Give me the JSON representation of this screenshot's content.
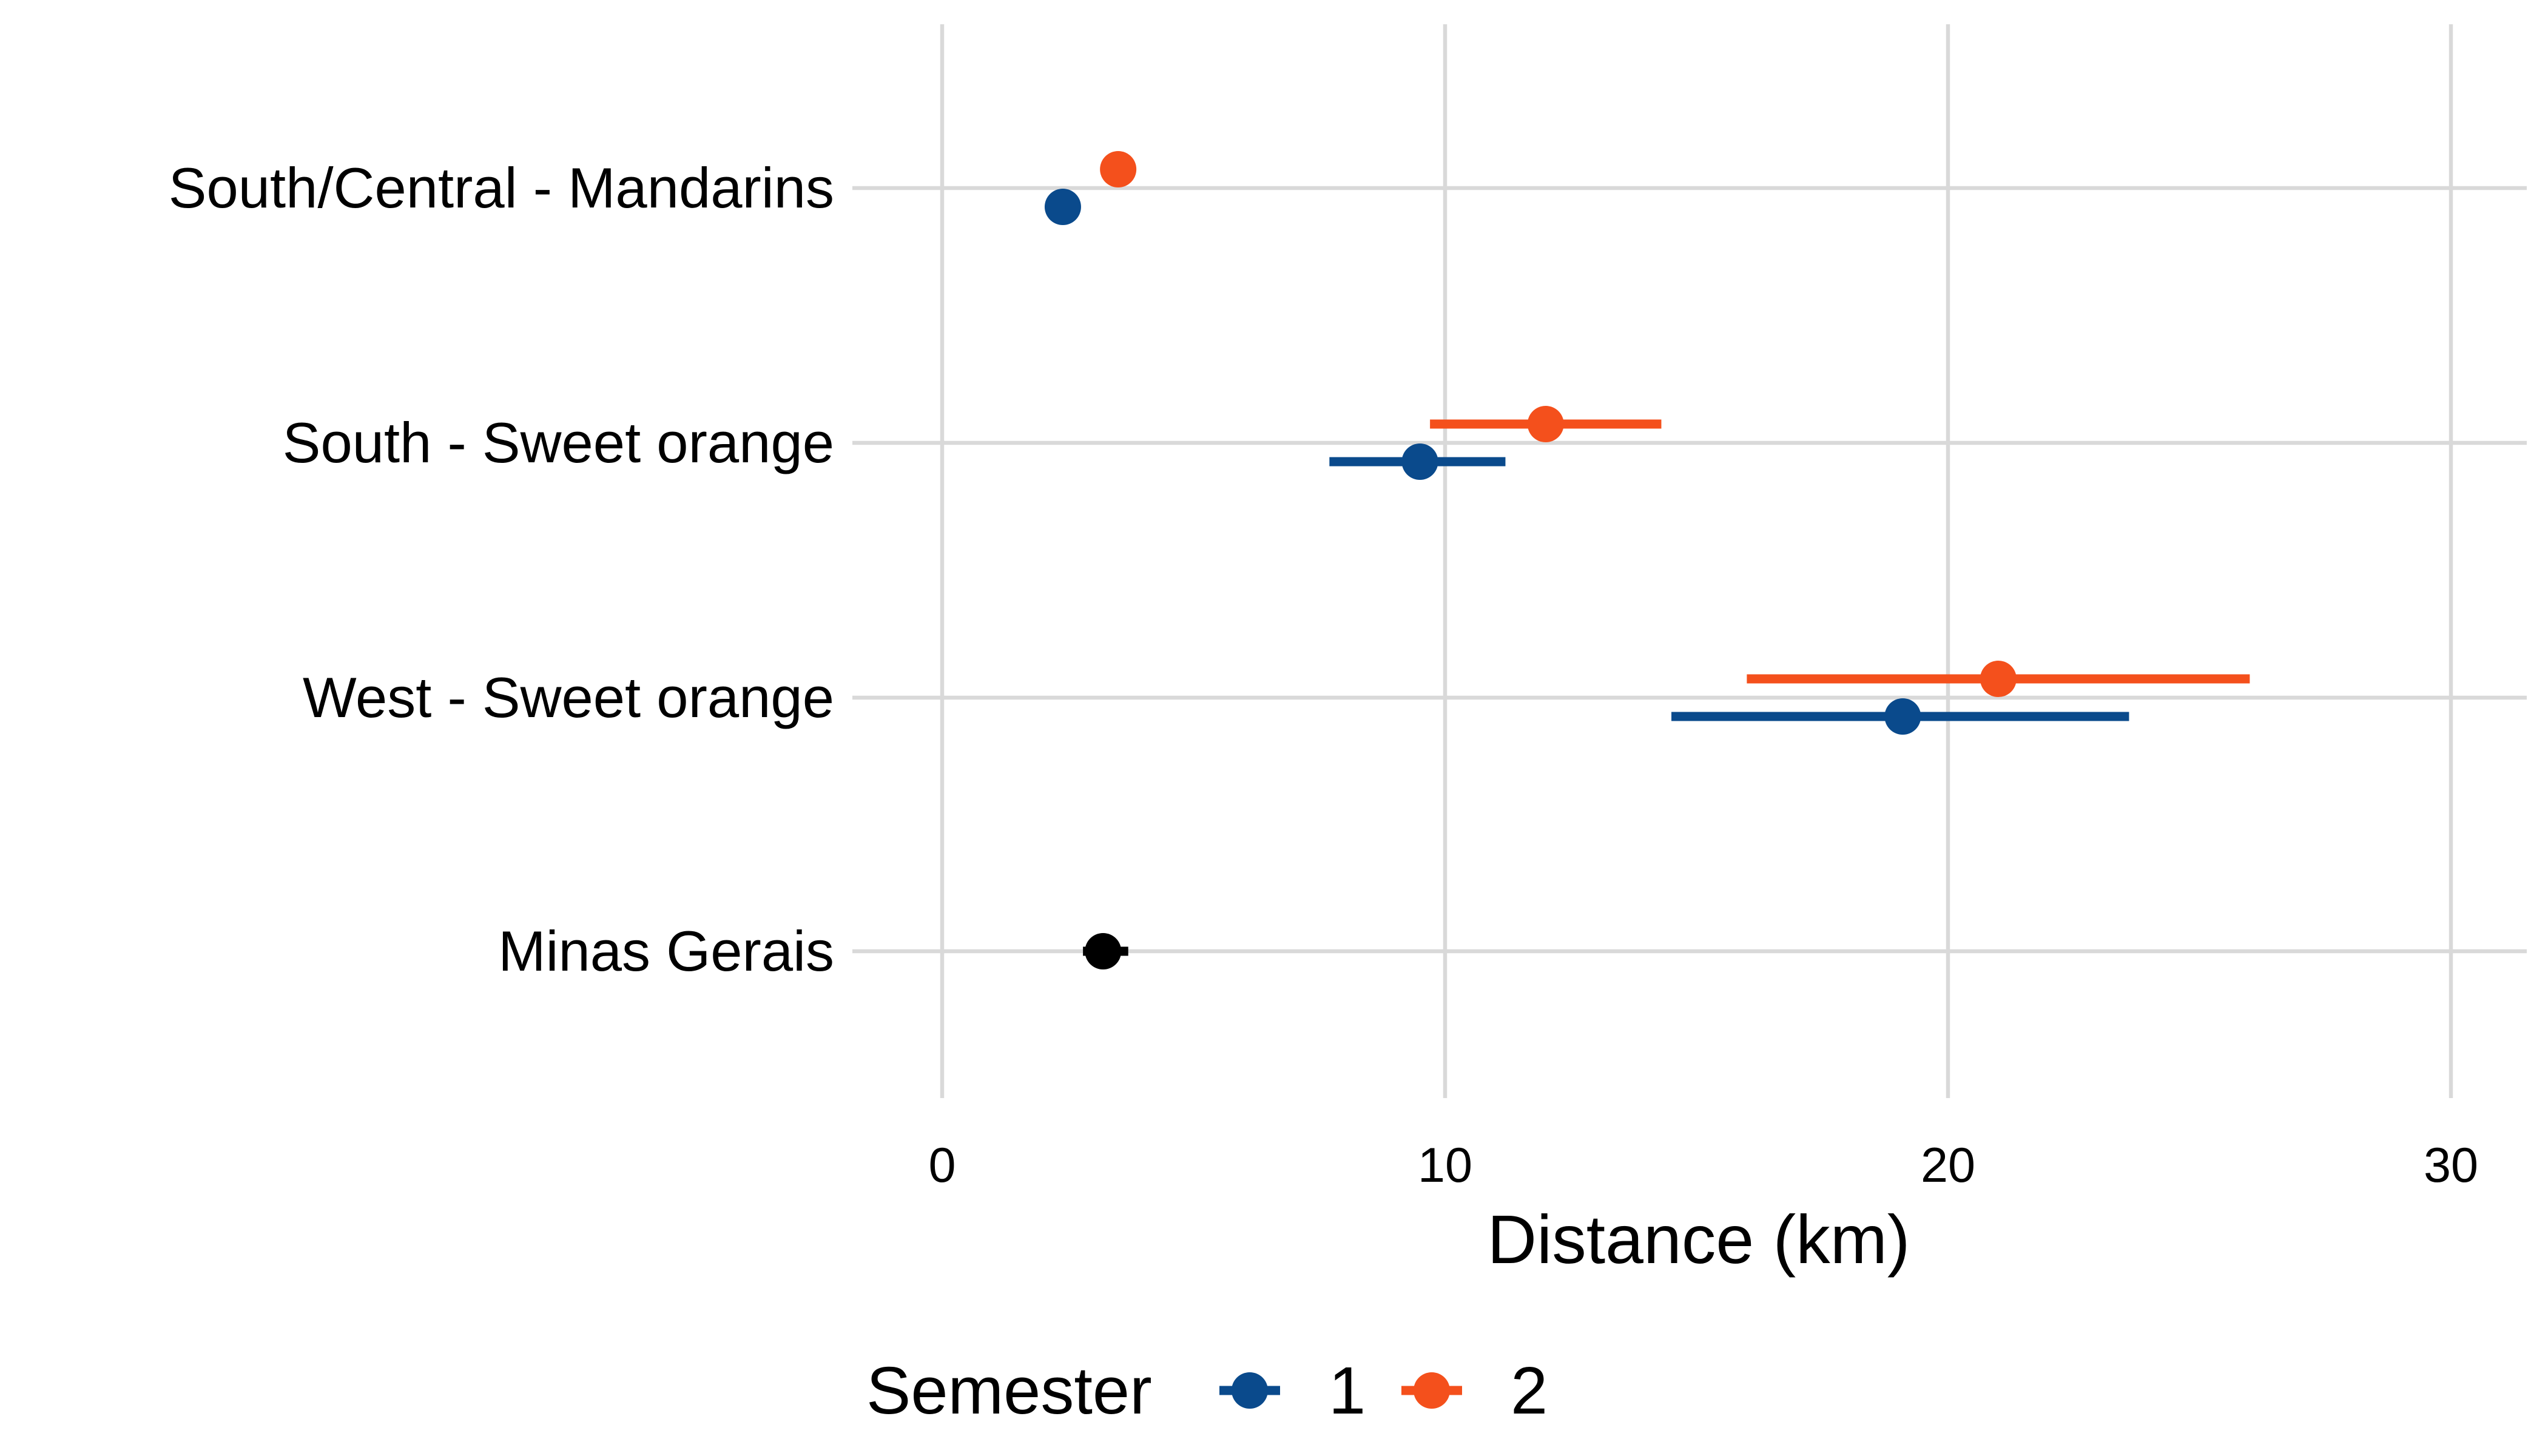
{
  "chart_data": {
    "type": "scatter",
    "subtype": "dot-and-interval",
    "xlabel": "Distance (km)",
    "ylabel": "",
    "xlim": [
      -1.8,
      31.5
    ],
    "x_ticks": [
      0,
      10,
      20,
      30
    ],
    "categories": [
      "South/Central - Mandarins",
      "South - Sweet orange",
      "West - Sweet orange",
      "Minas Gerais"
    ],
    "grid": true,
    "legend": {
      "title": "Semester",
      "placement": "bottom",
      "entries": [
        {
          "label": "1",
          "color": "#0a4a8c"
        },
        {
          "label": "2",
          "color": "#f4501c"
        }
      ]
    },
    "series": [
      {
        "name": "1",
        "color": "#0a4a8c",
        "points": [
          {
            "category": "South/Central - Mandarins",
            "value": 2.4,
            "low": 2.4,
            "high": 2.4
          },
          {
            "category": "South - Sweet orange",
            "value": 9.5,
            "low": 7.7,
            "high": 11.2
          },
          {
            "category": "West - Sweet orange",
            "value": 19.1,
            "low": 14.5,
            "high": 23.6
          }
        ]
      },
      {
        "name": "2",
        "color": "#f4501c",
        "points": [
          {
            "category": "South/Central - Mandarins",
            "value": 3.5,
            "low": 3.5,
            "high": 3.5
          },
          {
            "category": "South - Sweet orange",
            "value": 12.0,
            "low": 9.7,
            "high": 14.3
          },
          {
            "category": "West - Sweet orange",
            "value": 21.0,
            "low": 16.0,
            "high": 26.0
          }
        ]
      },
      {
        "color": "#000000",
        "points": [
          {
            "category": "Minas Gerais",
            "value": 3.2,
            "low": 2.8,
            "high": 3.7
          }
        ]
      }
    ]
  }
}
